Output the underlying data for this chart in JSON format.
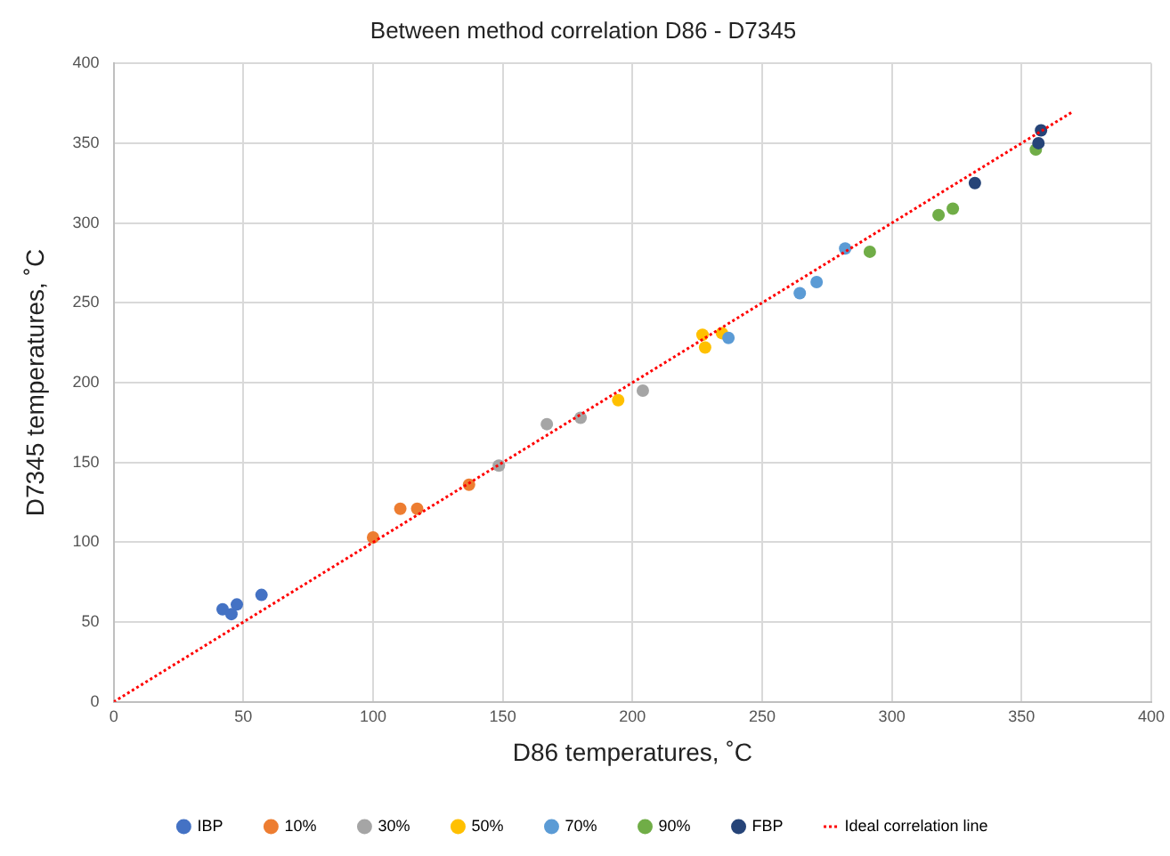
{
  "chart_data": {
    "type": "scatter",
    "title": "Between method correlation D86 - D7345",
    "xlabel": "D86 temperatures, ˚C",
    "ylabel": "D7345 temperatures, ˚C",
    "xlim": [
      0,
      400
    ],
    "xticks": [
      0,
      50,
      100,
      150,
      200,
      250,
      300,
      350,
      400
    ],
    "ylim": [
      0,
      400
    ],
    "yticks": [
      0,
      50,
      100,
      150,
      200,
      250,
      300,
      350,
      400
    ],
    "grid": true,
    "legend": "bottom",
    "marker": "circle",
    "series": [
      {
        "name": "IBP",
        "color": "#4472c4",
        "x": [
          42,
          45.4,
          47.5,
          57
        ],
        "values": [
          58,
          55,
          61,
          67
        ]
      },
      {
        "name": "10%",
        "color": "#ed7d31",
        "x": [
          100,
          110.5,
          117,
          137
        ],
        "values": [
          103,
          121,
          121,
          136
        ]
      },
      {
        "name": "30%",
        "color": "#a5a5a5",
        "x": [
          148.5,
          167,
          180,
          204
        ],
        "values": [
          148,
          174,
          178,
          195
        ]
      },
      {
        "name": "50%",
        "color": "#ffc000",
        "x": [
          194.5,
          227,
          228,
          234.5
        ],
        "values": [
          189,
          230,
          222,
          231
        ]
      },
      {
        "name": "70%",
        "color": "#5b9bd5",
        "x": [
          237,
          264.5,
          271,
          282
        ],
        "values": [
          228,
          256,
          263,
          284
        ]
      },
      {
        "name": "90%",
        "color": "#70ad47",
        "x": [
          291.5,
          318,
          323.5,
          355.5
        ],
        "values": [
          282,
          305,
          309,
          346
        ]
      },
      {
        "name": "FBP",
        "color": "#264478",
        "x": [
          332,
          356.5,
          357.5
        ],
        "values": [
          325,
          350,
          358
        ]
      },
      {
        "name": "Ideal correlation line",
        "type": "line",
        "color": "#ff0000",
        "line_style": "dotted",
        "marker": "none",
        "x": [
          0,
          370
        ],
        "values": [
          0,
          370
        ]
      }
    ]
  }
}
